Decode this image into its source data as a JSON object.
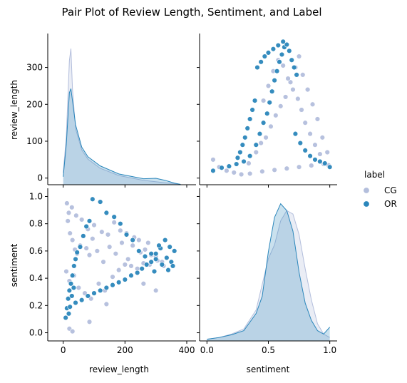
{
  "chart_data": {
    "type": "scatter",
    "title": "Pair Plot of Review Length, Sentiment, and Label",
    "variables": [
      "review_length",
      "sentiment"
    ],
    "hue": "label",
    "legend": {
      "title": "label",
      "placement": "right",
      "items": [
        {
          "label": "CG",
          "color": "#b3bedc"
        },
        {
          "label": "OR",
          "color": "#2a86bb"
        }
      ]
    },
    "axes": {
      "review_length": {
        "label": "review_length",
        "diag_range": [
          -50,
          430
        ],
        "scatter_range": [
          -18,
          392
        ],
        "diag_ticks": [
          0,
          200,
          400
        ],
        "scatter_ticks": [
          0,
          100,
          200,
          300
        ]
      },
      "sentiment": {
        "label": "sentiment",
        "range": [
          -0.06,
          1.06
        ],
        "ticks": [
          0.0,
          0.5,
          1.0
        ],
        "scatter_ticks": [
          0.0,
          0.2,
          0.4,
          0.6,
          0.8,
          1.0
        ],
        "tick_labels": [
          "0.0",
          "0.5",
          "1.0"
        ],
        "scatter_tick_labels": [
          "0.0",
          "0.2",
          "0.4",
          "0.6",
          "0.8",
          "1.0"
        ]
      }
    },
    "diagonal_kde": {
      "review_length": [
        {
          "name": "CG",
          "color": "#b3bedc",
          "x": [
            0,
            10,
            20,
            25,
            30,
            40,
            60,
            80,
            120,
            180,
            260,
            340,
            380
          ],
          "y": [
            0.003,
            0.012,
            0.031,
            0.034,
            0.024,
            0.014,
            0.0087,
            0.0064,
            0.0041,
            0.0023,
            0.0011,
            0.0004,
            0.0001
          ]
        },
        {
          "name": "OR",
          "color": "#2a86bb",
          "x": [
            0,
            10,
            20,
            25,
            30,
            40,
            60,
            80,
            120,
            180,
            260,
            300,
            330,
            360,
            380
          ],
          "y": [
            0.002,
            0.01,
            0.023,
            0.024,
            0.021,
            0.015,
            0.0094,
            0.007,
            0.0047,
            0.0027,
            0.0015,
            0.0016,
            0.0011,
            0.0004,
            0.0001
          ]
        }
      ],
      "sentiment": [
        {
          "name": "CG",
          "color": "#b3bedc",
          "x": [
            0.0,
            0.1,
            0.2,
            0.3,
            0.4,
            0.5,
            0.55,
            0.6,
            0.65,
            0.7,
            0.75,
            0.8,
            0.85,
            0.9,
            0.95,
            1.0
          ],
          "y": [
            0.05,
            0.1,
            0.2,
            0.35,
            0.9,
            2.4,
            2.8,
            3.5,
            3.8,
            3.7,
            3.1,
            2.1,
            1.2,
            0.5,
            0.2,
            0.1
          ]
        },
        {
          "name": "OR",
          "color": "#2a86bb",
          "x": [
            0.0,
            0.1,
            0.2,
            0.3,
            0.4,
            0.45,
            0.5,
            0.55,
            0.6,
            0.65,
            0.7,
            0.75,
            0.8,
            0.85,
            0.9,
            0.95,
            1.0
          ],
          "y": [
            0.05,
            0.1,
            0.18,
            0.3,
            0.8,
            1.3,
            2.6,
            3.6,
            4.0,
            3.8,
            3.2,
            2.0,
            1.1,
            0.6,
            0.3,
            0.2,
            0.4
          ]
        }
      ]
    },
    "scatter_samples": {
      "sentiment_vs_review_length": [
        {
          "name": "CG",
          "color": "#b3bedc",
          "points": [
            [
              15,
              0.82
            ],
            [
              22,
              0.73
            ],
            [
              30,
              0.68
            ],
            [
              38,
              0.61
            ],
            [
              45,
              0.58
            ],
            [
              55,
              0.64
            ],
            [
              65,
              0.71
            ],
            [
              75,
              0.62
            ],
            [
              85,
              0.57
            ],
            [
              95,
              0.69
            ],
            [
              110,
              0.6
            ],
            [
              130,
              0.52
            ],
            [
              150,
              0.63
            ],
            [
              170,
              0.58
            ],
            [
              190,
              0.66
            ],
            [
              210,
              0.54
            ],
            [
              230,
              0.7
            ],
            [
              250,
              0.59
            ],
            [
              275,
              0.66
            ],
            [
              300,
              0.56
            ],
            [
              320,
              0.52
            ],
            [
              12,
              0.95
            ],
            [
              18,
              0.88
            ],
            [
              28,
              0.92
            ],
            [
              42,
              0.86
            ],
            [
              60,
              0.83
            ],
            [
              80,
              0.76
            ],
            [
              100,
              0.79
            ],
            [
              125,
              0.74
            ],
            [
              145,
              0.72
            ],
            [
              165,
              0.81
            ],
            [
              185,
              0.75
            ],
            [
              205,
              0.73
            ],
            [
              225,
              0.64
            ],
            [
              245,
              0.68
            ],
            [
              265,
              0.61
            ],
            [
              285,
              0.57
            ],
            [
              10,
              0.45
            ],
            [
              20,
              0.38
            ],
            [
              35,
              0.42
            ],
            [
              50,
              0.33
            ],
            [
              70,
              0.29
            ],
            [
              90,
              0.25
            ],
            [
              115,
              0.36
            ],
            [
              135,
              0.31
            ],
            [
              160,
              0.41
            ],
            [
              180,
              0.46
            ],
            [
              200,
              0.5
            ],
            [
              220,
              0.49
            ],
            [
              240,
              0.47
            ],
            [
              260,
              0.51
            ],
            [
              280,
              0.5
            ],
            [
              305,
              0.53
            ],
            [
              325,
              0.49
            ],
            [
              140,
              0.21
            ],
            [
              85,
              0.08
            ],
            [
              20,
              0.03
            ],
            [
              30,
              0.01
            ],
            [
              260,
              0.36
            ],
            [
              300,
              0.31
            ]
          ]
        },
        {
          "name": "OR",
          "color": "#2a86bb",
          "points": [
            [
              8,
              0.11
            ],
            [
              12,
              0.18
            ],
            [
              16,
              0.25
            ],
            [
              20,
              0.31
            ],
            [
              25,
              0.36
            ],
            [
              30,
              0.42
            ],
            [
              35,
              0.49
            ],
            [
              40,
              0.54
            ],
            [
              45,
              0.59
            ],
            [
              55,
              0.63
            ],
            [
              65,
              0.71
            ],
            [
              75,
              0.78
            ],
            [
              85,
              0.82
            ],
            [
              95,
              0.98
            ],
            [
              120,
              0.96
            ],
            [
              140,
              0.88
            ],
            [
              165,
              0.85
            ],
            [
              185,
              0.8
            ],
            [
              205,
              0.72
            ],
            [
              225,
              0.68
            ],
            [
              245,
              0.6
            ],
            [
              265,
              0.56
            ],
            [
              285,
              0.58
            ],
            [
              300,
              0.54
            ],
            [
              315,
              0.62
            ],
            [
              330,
              0.68
            ],
            [
              345,
              0.63
            ],
            [
              360,
              0.6
            ],
            [
              295,
              0.45
            ],
            [
              320,
              0.5
            ],
            [
              335,
              0.55
            ],
            [
              350,
              0.52
            ],
            [
              340,
              0.46
            ],
            [
              355,
              0.49
            ],
            [
              310,
              0.64
            ],
            [
              300,
              0.58
            ],
            [
              285,
              0.52
            ],
            [
              270,
              0.5
            ],
            [
              255,
              0.47
            ],
            [
              240,
              0.44
            ],
            [
              220,
              0.42
            ],
            [
              200,
              0.39
            ],
            [
              180,
              0.37
            ],
            [
              160,
              0.35
            ],
            [
              140,
              0.33
            ],
            [
              120,
              0.31
            ],
            [
              100,
              0.29
            ],
            [
              80,
              0.27
            ],
            [
              60,
              0.24
            ],
            [
              40,
              0.22
            ],
            [
              18,
              0.14
            ],
            [
              22,
              0.19
            ],
            [
              28,
              0.27
            ],
            [
              34,
              0.33
            ]
          ]
        }
      ],
      "review_length_vs_sentiment": [
        {
          "name": "CG",
          "color": "#b3bedc",
          "points": [
            [
              0.05,
              50
            ],
            [
              0.1,
              30
            ],
            [
              0.16,
              20
            ],
            [
              0.22,
              15
            ],
            [
              0.28,
              10
            ],
            [
              0.34,
              40
            ],
            [
              0.4,
              70
            ],
            [
              0.44,
              95
            ],
            [
              0.48,
              110
            ],
            [
              0.52,
              140
            ],
            [
              0.56,
              170
            ],
            [
              0.6,
              195
            ],
            [
              0.64,
              220
            ],
            [
              0.68,
              260
            ],
            [
              0.72,
              300
            ],
            [
              0.75,
              330
            ],
            [
              0.78,
              280
            ],
            [
              0.82,
              240
            ],
            [
              0.86,
              200
            ],
            [
              0.9,
              160
            ],
            [
              0.94,
              110
            ],
            [
              0.98,
              70
            ],
            [
              0.99,
              35
            ],
            [
              0.46,
              210
            ],
            [
              0.5,
              250
            ],
            [
              0.54,
              290
            ],
            [
              0.58,
              320
            ],
            [
              0.62,
              305
            ],
            [
              0.66,
              270
            ],
            [
              0.7,
              240
            ],
            [
              0.74,
              215
            ],
            [
              0.77,
              185
            ],
            [
              0.8,
              150
            ],
            [
              0.84,
              120
            ],
            [
              0.88,
              90
            ],
            [
              0.92,
              65
            ],
            [
              0.96,
              40
            ],
            [
              0.35,
              12
            ],
            [
              0.45,
              18
            ],
            [
              0.55,
              22
            ],
            [
              0.65,
              26
            ],
            [
              0.75,
              30
            ],
            [
              0.85,
              34
            ],
            [
              0.95,
              38
            ]
          ]
        },
        {
          "name": "OR",
          "color": "#2a86bb",
          "points": [
            [
              0.05,
              20
            ],
            [
              0.12,
              28
            ],
            [
              0.18,
              32
            ],
            [
              0.24,
              38
            ],
            [
              0.3,
              45
            ],
            [
              0.35,
              60
            ],
            [
              0.4,
              90
            ],
            [
              0.43,
              120
            ],
            [
              0.46,
              150
            ],
            [
              0.49,
              175
            ],
            [
              0.51,
              205
            ],
            [
              0.53,
              235
            ],
            [
              0.55,
              265
            ],
            [
              0.57,
              290
            ],
            [
              0.59,
              315
            ],
            [
              0.61,
              335
            ],
            [
              0.63,
              355
            ],
            [
              0.65,
              362
            ],
            [
              0.67,
              345
            ],
            [
              0.69,
              320
            ],
            [
              0.71,
              300
            ],
            [
              0.73,
              280
            ],
            [
              0.62,
              370
            ],
            [
              0.58,
              360
            ],
            [
              0.54,
              350
            ],
            [
              0.5,
              340
            ],
            [
              0.47,
              330
            ],
            [
              0.44,
              315
            ],
            [
              0.41,
              300
            ],
            [
              0.39,
              210
            ],
            [
              0.37,
              185
            ],
            [
              0.35,
              160
            ],
            [
              0.33,
              135
            ],
            [
              0.31,
              110
            ],
            [
              0.29,
              90
            ],
            [
              0.27,
              70
            ],
            [
              0.25,
              55
            ],
            [
              0.72,
              120
            ],
            [
              0.76,
              95
            ],
            [
              0.8,
              75
            ],
            [
              0.84,
              60
            ],
            [
              0.88,
              50
            ],
            [
              0.92,
              45
            ],
            [
              0.96,
              40
            ],
            [
              1.0,
              30
            ]
          ]
        }
      ]
    }
  }
}
